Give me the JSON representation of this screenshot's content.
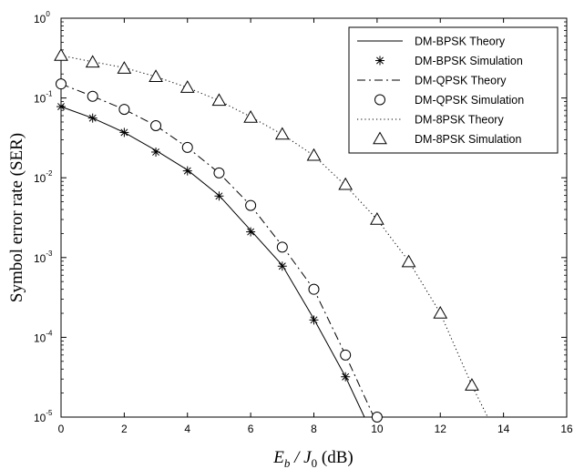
{
  "chart_data": {
    "type": "line",
    "title": "",
    "xlabel": {
      "main": "E",
      "sub": "b",
      "mid": " / J",
      "sub2": "0",
      "unit": "  (dB)"
    },
    "ylabel": "Symbol error rate (SER)",
    "xlim": [
      0,
      16
    ],
    "ylim": [
      1e-05,
      1
    ],
    "yscale": "log",
    "grid": false,
    "legend_position": "top-right",
    "x_ticks": [
      "0",
      "2",
      "4",
      "6",
      "8",
      "10",
      "12",
      "14",
      "16"
    ],
    "y_ticks": [
      {
        "base": "10",
        "exp": "0",
        "value": 1
      },
      {
        "base": "10",
        "exp": "-1",
        "value": 0.1
      },
      {
        "base": "10",
        "exp": "-2",
        "value": 0.01
      },
      {
        "base": "10",
        "exp": "-3",
        "value": 0.001
      },
      {
        "base": "10",
        "exp": "-4",
        "value": 0.0001
      },
      {
        "base": "10",
        "exp": "-5",
        "value": 1e-05
      }
    ],
    "series": [
      {
        "name": "DM-BPSK Theory",
        "style": "solid",
        "marker": "none",
        "x": [
          0,
          1,
          2,
          3,
          4,
          5,
          6,
          7,
          8,
          9,
          9.6
        ],
        "y": [
          0.078,
          0.056,
          0.037,
          0.022,
          0.0125,
          0.006,
          0.0022,
          0.0008,
          0.00017,
          3.2e-05,
          1e-05
        ]
      },
      {
        "name": "DM-BPSK Simulation",
        "style": "none",
        "marker": "star",
        "x": [
          0,
          1,
          2,
          3,
          4,
          5,
          6,
          7,
          8,
          9
        ],
        "y": [
          0.078,
          0.056,
          0.037,
          0.021,
          0.0122,
          0.0059,
          0.0021,
          0.00078,
          0.000165,
          3.2e-05
        ]
      },
      {
        "name": "DM-QPSK Theory",
        "style": "dashdot",
        "marker": "none",
        "x": [
          0,
          1,
          2,
          3,
          4,
          5,
          6,
          7,
          8,
          9,
          9.9
        ],
        "y": [
          0.15,
          0.105,
          0.072,
          0.045,
          0.024,
          0.0115,
          0.0045,
          0.0014,
          0.0004,
          6e-05,
          1e-05
        ]
      },
      {
        "name": "DM-QPSK Simulation",
        "style": "none",
        "marker": "circle",
        "x": [
          0,
          1,
          2,
          3,
          4,
          5,
          6,
          7,
          8,
          9,
          10
        ],
        "y": [
          0.15,
          0.105,
          0.072,
          0.045,
          0.024,
          0.0115,
          0.0045,
          0.00135,
          0.0004,
          6e-05,
          1e-05
        ]
      },
      {
        "name": "DM-8PSK Theory",
        "style": "dotted",
        "marker": "none",
        "x": [
          0,
          1,
          2,
          3,
          4,
          5,
          6,
          7,
          8,
          9,
          10,
          11,
          12,
          13,
          13.5
        ],
        "y": [
          0.34,
          0.285,
          0.24,
          0.185,
          0.135,
          0.093,
          0.058,
          0.035,
          0.019,
          0.008,
          0.003,
          0.0009,
          0.0002,
          2.5e-05,
          1e-05
        ]
      },
      {
        "name": "DM-8PSK Simulation",
        "style": "none",
        "marker": "triangle",
        "x": [
          0,
          1,
          2,
          3,
          4,
          5,
          6,
          7,
          8,
          9,
          10,
          11,
          12,
          13
        ],
        "y": [
          0.34,
          0.28,
          0.235,
          0.185,
          0.135,
          0.093,
          0.057,
          0.035,
          0.019,
          0.0082,
          0.003,
          0.00088,
          0.0002,
          2.5e-05
        ]
      }
    ]
  }
}
